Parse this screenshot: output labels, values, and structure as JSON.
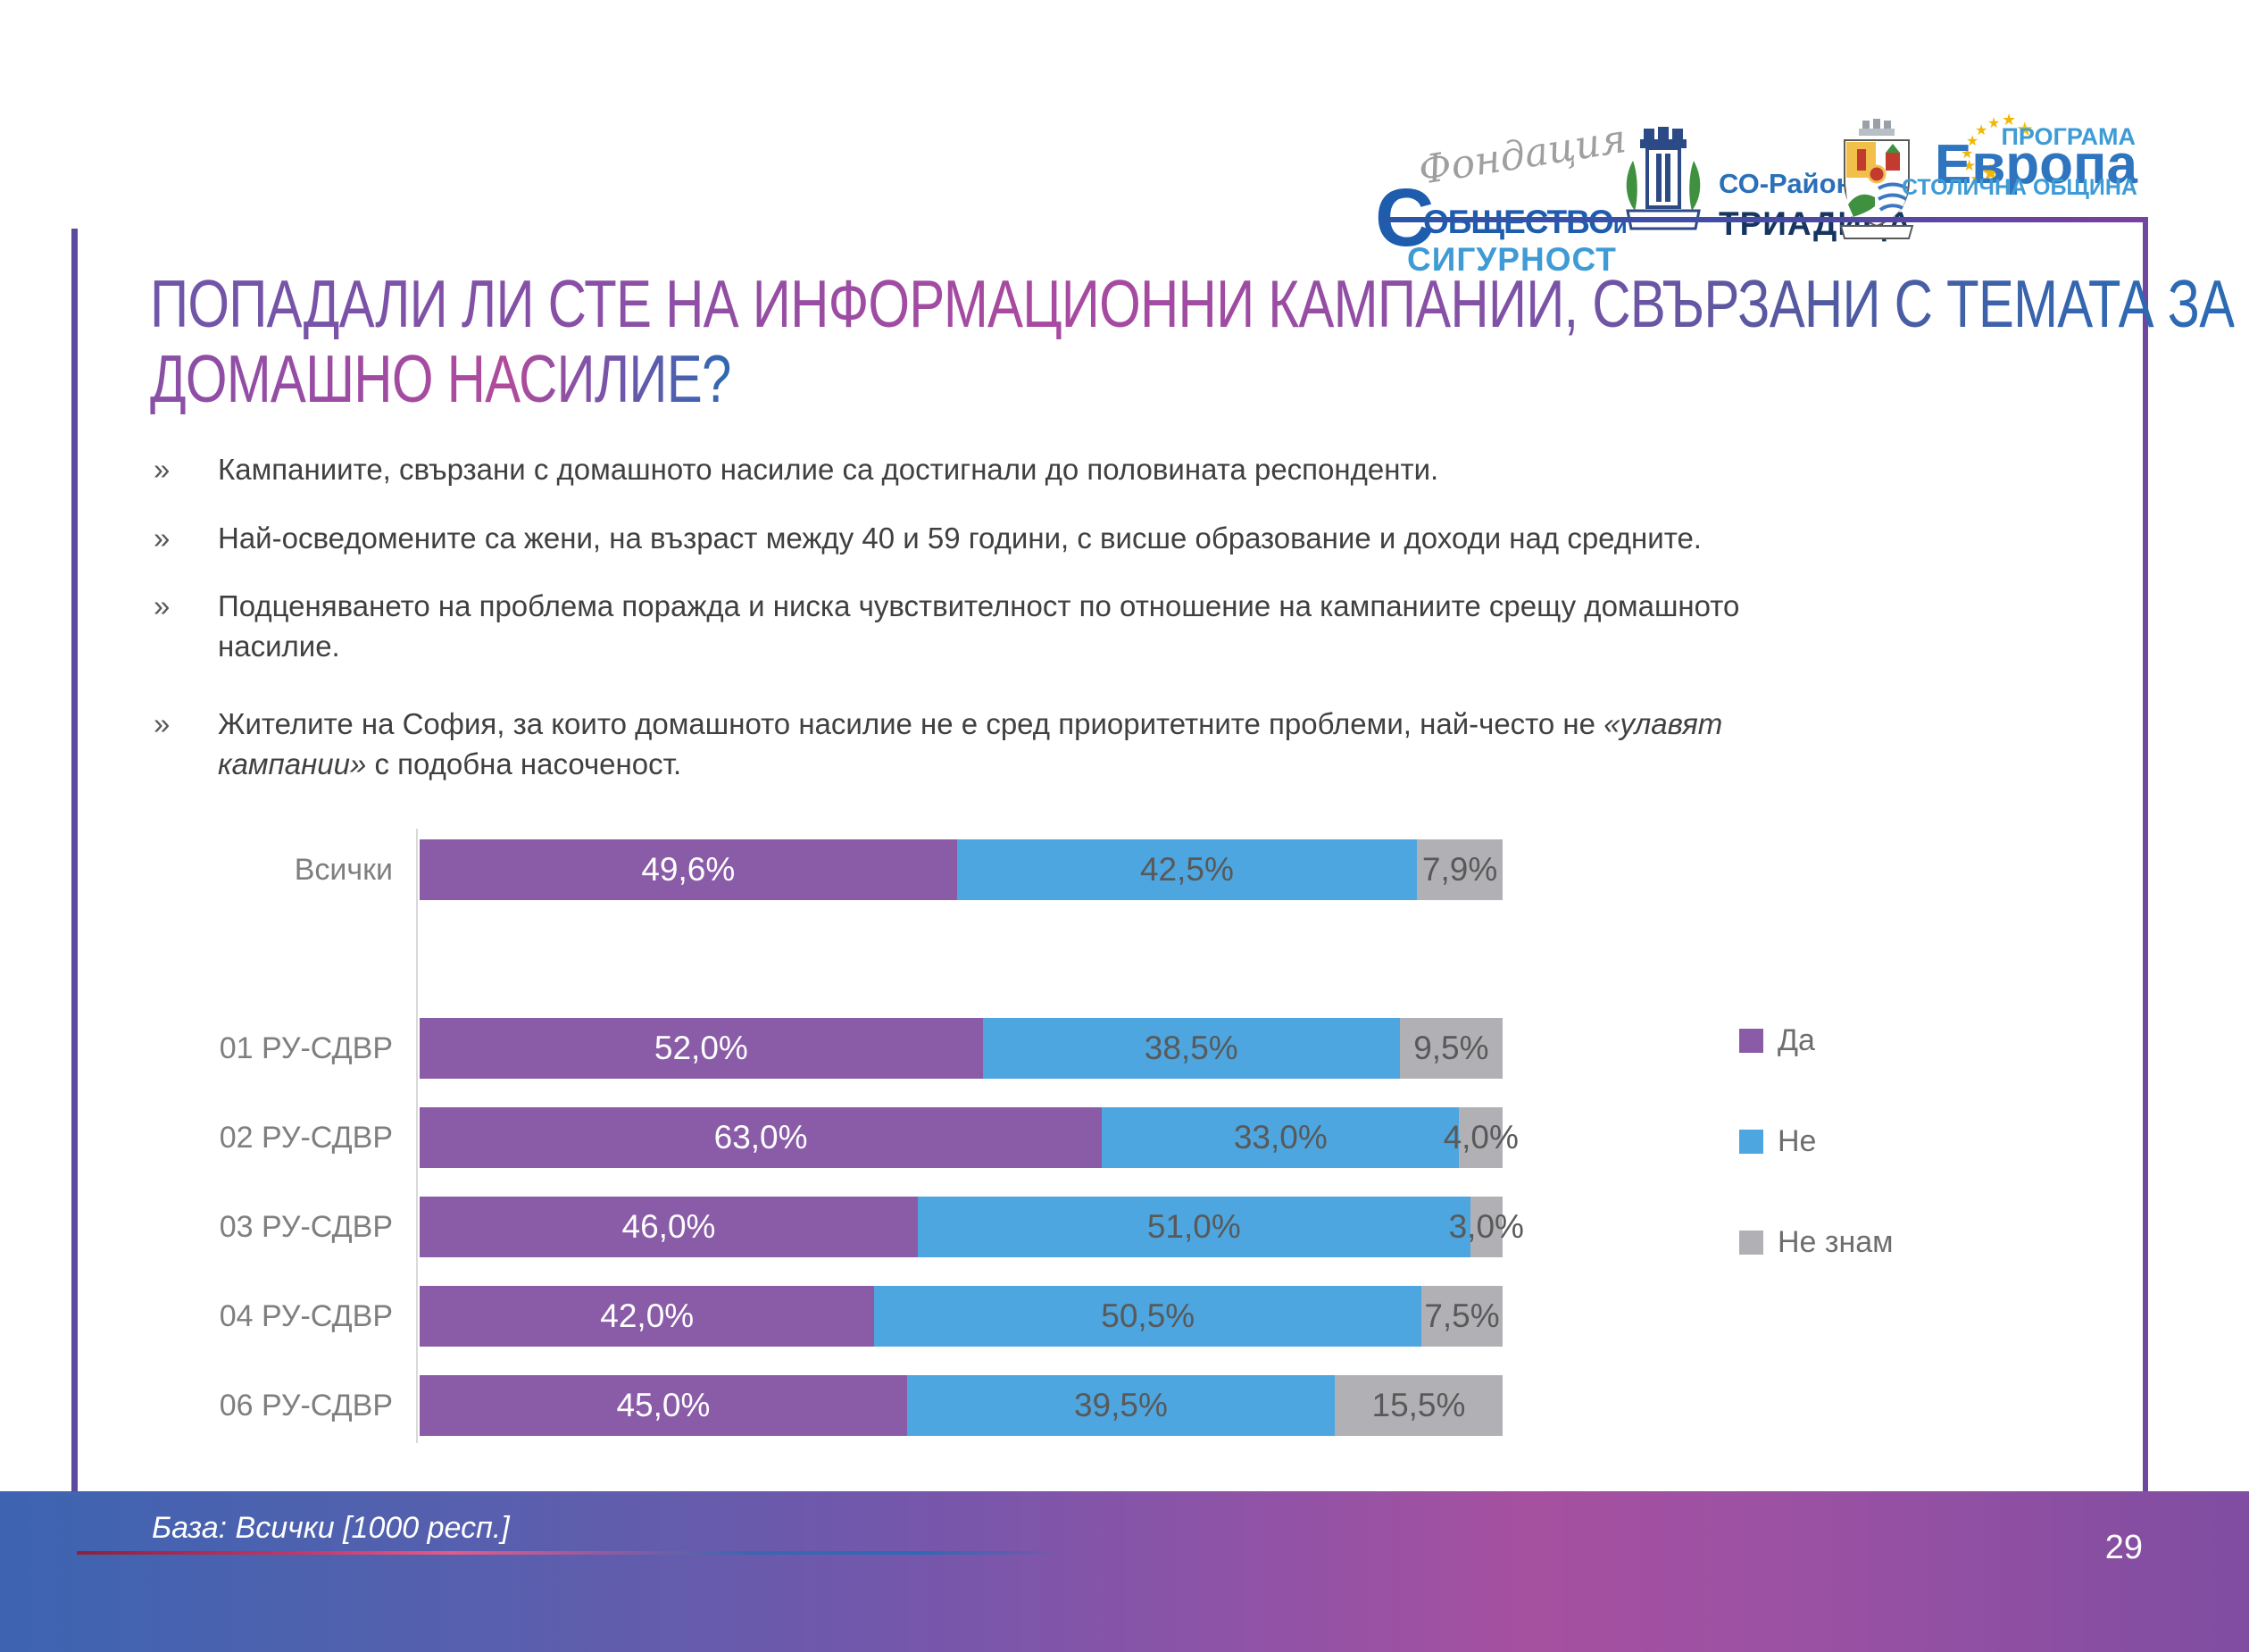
{
  "header": {
    "logos": {
      "foundation": {
        "script": "Фондация",
        "initial": "С",
        "name_line1": "ОБЩЕСТВО",
        "name_suffix": "и",
        "name_line2": "СИГУРНОСТ"
      },
      "district": {
        "line1": "СО-Район",
        "line2": "ТРИАДИЦА"
      },
      "europe_program": {
        "top": "ПРОГРАМА",
        "main": "Европа",
        "bottom": "СТОЛИЧНА ОБЩИНА"
      }
    }
  },
  "title": {
    "line1": "ПОПАДАЛИ ЛИ СТЕ НА ИНФОРМАЦИОННИ КАМПАНИИ, СВЪРЗАНИ С ТЕМАТА ЗА",
    "line2": "ДОМАШНО НАСИЛИЕ?"
  },
  "bullet_marker": "»",
  "bullets": [
    {
      "text": "Кампаниите, свързани с домашното насилие са достигнали до половината респонденти."
    },
    {
      "text": "Най-осведомените са жени, на възраст между 40 и 59 години, с висше образование и доходи над средните."
    },
    {
      "text": "Подценяването на проблема поражда и ниска чувствителност по отношение на кампаниите срещу домашното насилие."
    },
    {
      "pre": "Жителите на София, за които домашното насилие не е сред приоритетните проблеми, най-често не ",
      "italic": "«улавят кампании»",
      "post": " с подобна насоченост."
    }
  ],
  "chart_data": {
    "type": "bar",
    "orientation": "horizontal",
    "stacked": true,
    "xlim": [
      0,
      100
    ],
    "gridlines": false,
    "legend_position": "right",
    "categories": [
      "Всички",
      "01 РУ-СДВР",
      "02 РУ-СДВР",
      "03 РУ-СДВР",
      "04 РУ-СДВР",
      "06 РУ-СДВР"
    ],
    "series": [
      {
        "name": "Да",
        "color": "#8A5CA8",
        "label_color": "#ffffff",
        "values": [
          49.6,
          52.0,
          63.0,
          46.0,
          42.0,
          45.0
        ],
        "labels": [
          "49,6%",
          "52,0%",
          "63,0%",
          "46,0%",
          "42,0%",
          "45,0%"
        ]
      },
      {
        "name": "Не",
        "color": "#4DA6DF",
        "label_color": "#595959",
        "values": [
          42.5,
          38.5,
          33.0,
          51.0,
          50.5,
          39.5
        ],
        "labels": [
          "42,5%",
          "38,5%",
          "33,0%",
          "51,0%",
          "50,5%",
          "39,5%"
        ]
      },
      {
        "name": "Не знам",
        "color": "#B1B1B5",
        "label_color": "#595959",
        "values": [
          7.9,
          9.5,
          4.0,
          3.0,
          7.5,
          15.5
        ],
        "labels": [
          "7,9%",
          "9,5%",
          "4,0%",
          "3,0%",
          "7,5%",
          "15,5%"
        ]
      }
    ]
  },
  "footer": {
    "base_note": "База: Всички [1000 респ.]",
    "page_number": "29"
  },
  "colors": {
    "yes": "#8A5CA8",
    "no": "#4DA6DF",
    "dont_know": "#B1B1B5",
    "accent_purple": "#5B4A9E",
    "footer_left": "#3D64B1",
    "footer_magenta": "#A650A0"
  }
}
